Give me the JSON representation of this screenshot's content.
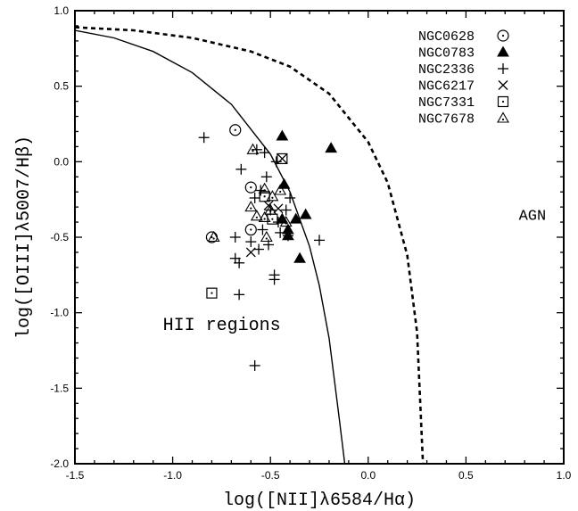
{
  "chart_data": {
    "type": "scatter",
    "title": "",
    "xlabel": "log([NII]λ6584/Hα)",
    "ylabel": "log([OIII]λ5007/Hβ)",
    "xlim": [
      -1.5,
      1.0
    ],
    "ylim": [
      -2.0,
      1.0
    ],
    "x_ticks": [
      "-1.5",
      "-1.0",
      "-0.5",
      "0.0",
      "0.5",
      "1.0"
    ],
    "y_ticks": [
      "1.0",
      "0.5",
      "0.0",
      "-0.5",
      "-1.0",
      "-1.5",
      "-2.0"
    ],
    "grid": false,
    "legend_position": "top-right",
    "annotations": [
      {
        "text": "HII regions",
        "x": -1.05,
        "y": -1.08,
        "size": "large"
      },
      {
        "text": "AGN",
        "x": 0.77,
        "y": -0.35,
        "size": "small"
      }
    ],
    "curves": [
      {
        "style": "solid",
        "x": [
          -1.5,
          -1.3,
          -1.1,
          -0.9,
          -0.7,
          -0.5,
          -0.4,
          -0.3,
          -0.25,
          -0.2,
          -0.15,
          -0.12
        ],
        "y": [
          0.87,
          0.82,
          0.73,
          0.59,
          0.38,
          0.05,
          -0.2,
          -0.56,
          -0.82,
          -1.17,
          -1.68,
          -2.0
        ]
      },
      {
        "style": "dashed",
        "x": [
          -1.5,
          -1.2,
          -0.9,
          -0.6,
          -0.4,
          -0.2,
          0.0,
          0.1,
          0.2,
          0.25,
          0.28
        ],
        "y": [
          0.89,
          0.87,
          0.82,
          0.73,
          0.63,
          0.45,
          0.13,
          -0.14,
          -0.62,
          -1.13,
          -2.0
        ]
      }
    ],
    "series": [
      {
        "name": "NGC0628",
        "marker": "circle-dot",
        "points": [
          [
            -0.68,
            0.21
          ],
          [
            -0.6,
            -0.17
          ],
          [
            -0.6,
            -0.45
          ],
          [
            -0.8,
            -0.5
          ]
        ]
      },
      {
        "name": "NGC0783",
        "marker": "filled-triangle",
        "points": [
          [
            -0.44,
            0.17
          ],
          [
            -0.19,
            0.09
          ],
          [
            -0.43,
            -0.15
          ],
          [
            -0.37,
            -0.38
          ],
          [
            -0.32,
            -0.35
          ],
          [
            -0.41,
            -0.45
          ],
          [
            -0.41,
            -0.49
          ],
          [
            -0.35,
            -0.64
          ],
          [
            -0.44,
            -0.38
          ]
        ]
      },
      {
        "name": "NGC2336",
        "marker": "plus",
        "points": [
          [
            -0.84,
            0.16
          ],
          [
            -0.57,
            0.08
          ],
          [
            -0.53,
            0.06
          ],
          [
            -0.65,
            -0.05
          ],
          [
            -0.47,
            0.0
          ],
          [
            -0.52,
            -0.1
          ],
          [
            -0.55,
            -0.19
          ],
          [
            -0.58,
            -0.24
          ],
          [
            -0.4,
            -0.24
          ],
          [
            -0.5,
            -0.32
          ],
          [
            -0.42,
            -0.32
          ],
          [
            -0.46,
            -0.4
          ],
          [
            -0.54,
            -0.45
          ],
          [
            -0.45,
            -0.47
          ],
          [
            -0.68,
            -0.5
          ],
          [
            -0.6,
            -0.53
          ],
          [
            -0.51,
            -0.55
          ],
          [
            -0.41,
            -0.49
          ],
          [
            -0.25,
            -0.52
          ],
          [
            -0.56,
            -0.58
          ],
          [
            -0.68,
            -0.64
          ],
          [
            -0.66,
            -0.67
          ],
          [
            -0.48,
            -0.75
          ],
          [
            -0.48,
            -0.78
          ],
          [
            -0.66,
            -0.88
          ],
          [
            -0.58,
            -1.35
          ]
        ]
      },
      {
        "name": "NGC6217",
        "marker": "x",
        "points": [
          [
            -0.44,
            0.02
          ],
          [
            -0.51,
            -0.29
          ],
          [
            -0.46,
            -0.31
          ],
          [
            -0.6,
            -0.6
          ]
        ]
      },
      {
        "name": "NGC7331",
        "marker": "square-dot",
        "points": [
          [
            -0.44,
            0.02
          ],
          [
            -0.53,
            -0.23
          ],
          [
            -0.49,
            -0.38
          ],
          [
            -0.8,
            -0.87
          ]
        ]
      },
      {
        "name": "NGC7678",
        "marker": "triangle-dot",
        "points": [
          [
            -0.59,
            0.08
          ],
          [
            -0.53,
            -0.18
          ],
          [
            -0.45,
            -0.19
          ],
          [
            -0.49,
            -0.23
          ],
          [
            -0.6,
            -0.3
          ],
          [
            -0.5,
            -0.32
          ],
          [
            -0.57,
            -0.36
          ],
          [
            -0.53,
            -0.37
          ],
          [
            -0.52,
            -0.5
          ],
          [
            -0.42,
            -0.4
          ],
          [
            -0.79,
            -0.5
          ]
        ]
      }
    ]
  }
}
